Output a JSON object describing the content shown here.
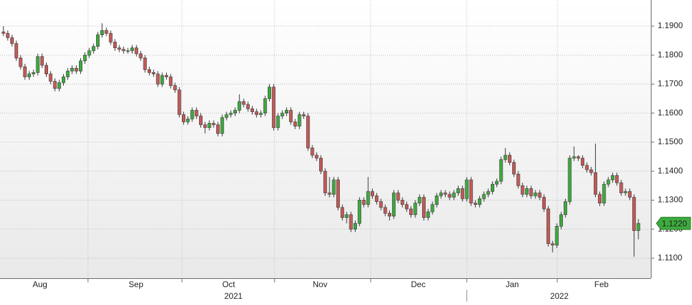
{
  "chart_data": {
    "type": "candlestick",
    "up_color": "#3daa3d",
    "down_color": "#c45a57",
    "outline_color": "#333333",
    "grid": true,
    "axis_side": "right",
    "xlim": [
      -0.8,
      150.9
    ],
    "ylim": [
      1.1031,
      1.199
    ],
    "yticks": [
      {
        "value": 1.11,
        "label": "1.1100"
      },
      {
        "value": 1.12,
        "label": "1.1200"
      },
      {
        "value": 1.13,
        "label": "1.1300"
      },
      {
        "value": 1.14,
        "label": "1.1400"
      },
      {
        "value": 1.15,
        "label": "1.1500"
      },
      {
        "value": 1.16,
        "label": "1.1600"
      },
      {
        "value": 1.17,
        "label": "1.1700"
      },
      {
        "value": 1.18,
        "label": "1.1800"
      },
      {
        "value": 1.19,
        "label": "1.1900"
      }
    ],
    "xticks": [
      {
        "value": 8.5,
        "label": "Aug"
      },
      {
        "value": 30.9,
        "label": "Sep"
      },
      {
        "value": 52.5,
        "label": "Oct"
      },
      {
        "value": 73.8,
        "label": "Nov"
      },
      {
        "value": 96.7,
        "label": "Dec"
      },
      {
        "value": 118.6,
        "label": "Jan"
      },
      {
        "value": 139.4,
        "label": "Feb"
      }
    ],
    "xgrid": [
      19.7,
      41.6,
      63.2,
      85.6,
      108.0,
      129.1
    ],
    "years": [
      {
        "value": 53.6,
        "label": "2021"
      },
      {
        "value": 129.6,
        "label": "2022"
      }
    ],
    "year_divider": 108.0,
    "last_price": {
      "value": 1.122,
      "label": "1.1220",
      "color": "#3daa3d"
    },
    "open": [
      1.188,
      1.1875,
      1.186,
      1.184,
      1.179,
      1.176,
      1.1725,
      1.1735,
      1.174,
      1.1795,
      1.1765,
      1.1735,
      1.171,
      1.1685,
      1.1705,
      1.1725,
      1.1745,
      1.1755,
      1.1745,
      1.178,
      1.18,
      1.1815,
      1.183,
      1.187,
      1.1885,
      1.1875,
      1.1845,
      1.1825,
      1.182,
      1.1815,
      1.1815,
      1.1825,
      1.1805,
      1.179,
      1.175,
      1.174,
      1.1735,
      1.17,
      1.173,
      1.1725,
      1.1695,
      1.168,
      1.1595,
      1.157,
      1.158,
      1.161,
      1.159,
      1.156,
      1.155,
      1.1565,
      1.156,
      1.153,
      1.1585,
      1.1595,
      1.16,
      1.161,
      1.164,
      1.163,
      1.1615,
      1.1605,
      1.1595,
      1.16,
      1.165,
      1.169,
      1.155,
      1.159,
      1.16,
      1.161,
      1.157,
      1.1555,
      1.1595,
      1.159,
      1.148,
      1.1455,
      1.1445,
      1.14,
      1.1325,
      1.132,
      1.137,
      1.1275,
      1.124,
      1.125,
      1.12,
      1.122,
      1.13,
      1.1285,
      1.133,
      1.1315,
      1.1295,
      1.1275,
      1.1255,
      1.1245,
      1.1325,
      1.13,
      1.1285,
      1.127,
      1.125,
      1.129,
      1.131,
      1.124,
      1.126,
      1.1285,
      1.1315,
      1.1325,
      1.132,
      1.131,
      1.1325,
      1.134,
      1.1305,
      1.137,
      1.129,
      1.1285,
      1.1305,
      1.132,
      1.133,
      1.1355,
      1.1365,
      1.144,
      1.1455,
      1.143,
      1.139,
      1.135,
      1.132,
      1.134,
      1.1315,
      1.1325,
      1.131,
      1.127,
      1.115,
      1.1145,
      1.121,
      1.125,
      1.1295,
      1.1445,
      1.145,
      1.1445,
      1.142,
      1.1405,
      1.1395,
      1.132,
      1.129,
      1.1355,
      1.137,
      1.1385,
      1.136,
      1.1325,
      1.133,
      1.131,
      1.1195
    ],
    "high": [
      1.19,
      1.1885,
      1.187,
      1.185,
      1.18,
      1.177,
      1.1745,
      1.175,
      1.1805,
      1.1805,
      1.1775,
      1.1745,
      1.172,
      1.1715,
      1.1735,
      1.1755,
      1.1765,
      1.1765,
      1.179,
      1.181,
      1.1825,
      1.184,
      1.188,
      1.191,
      1.1895,
      1.1885,
      1.1855,
      1.1835,
      1.183,
      1.1825,
      1.1835,
      1.1835,
      1.1815,
      1.18,
      1.176,
      1.175,
      1.1745,
      1.174,
      1.174,
      1.1735,
      1.1705,
      1.169,
      1.1605,
      1.159,
      1.162,
      1.162,
      1.16,
      1.157,
      1.1575,
      1.1575,
      1.157,
      1.1595,
      1.1605,
      1.161,
      1.162,
      1.1665,
      1.165,
      1.164,
      1.1625,
      1.1615,
      1.161,
      1.166,
      1.17,
      1.17,
      1.16,
      1.161,
      1.162,
      1.162,
      1.158,
      1.1605,
      1.1605,
      1.16,
      1.149,
      1.1465,
      1.1455,
      1.141,
      1.138,
      1.138,
      1.138,
      1.1285,
      1.126,
      1.126,
      1.123,
      1.131,
      1.131,
      1.138,
      1.134,
      1.1325,
      1.1305,
      1.1285,
      1.1265,
      1.1335,
      1.1335,
      1.131,
      1.1295,
      1.128,
      1.13,
      1.132,
      1.132,
      1.127,
      1.1295,
      1.1325,
      1.1335,
      1.1335,
      1.133,
      1.1335,
      1.135,
      1.135,
      1.138,
      1.138,
      1.13,
      1.1315,
      1.133,
      1.134,
      1.1365,
      1.1375,
      1.145,
      1.148,
      1.1465,
      1.144,
      1.14,
      1.136,
      1.135,
      1.135,
      1.1335,
      1.1335,
      1.132,
      1.128,
      1.116,
      1.122,
      1.126,
      1.1305,
      1.1455,
      1.1485,
      1.1455,
      1.1455,
      1.143,
      1.1415,
      1.1495,
      1.133,
      1.1365,
      1.138,
      1.1395,
      1.1395,
      1.137,
      1.134,
      1.134,
      1.132,
      1.1235
    ],
    "low": [
      1.1865,
      1.185,
      1.183,
      1.178,
      1.175,
      1.1715,
      1.1715,
      1.1725,
      1.173,
      1.1755,
      1.1725,
      1.17,
      1.1675,
      1.1675,
      1.1695,
      1.1715,
      1.1735,
      1.1735,
      1.1735,
      1.177,
      1.179,
      1.1805,
      1.182,
      1.186,
      1.1865,
      1.1835,
      1.1815,
      1.181,
      1.1805,
      1.1805,
      1.1805,
      1.1795,
      1.178,
      1.174,
      1.173,
      1.1725,
      1.169,
      1.169,
      1.1715,
      1.1685,
      1.167,
      1.1585,
      1.156,
      1.156,
      1.157,
      1.158,
      1.155,
      1.153,
      1.154,
      1.155,
      1.152,
      1.152,
      1.1575,
      1.1585,
      1.159,
      1.16,
      1.162,
      1.1605,
      1.1595,
      1.1585,
      1.1585,
      1.159,
      1.164,
      1.154,
      1.154,
      1.158,
      1.159,
      1.156,
      1.1545,
      1.1545,
      1.158,
      1.147,
      1.1445,
      1.1435,
      1.139,
      1.1315,
      1.131,
      1.131,
      1.1265,
      1.123,
      1.122,
      1.119,
      1.119,
      1.121,
      1.1275,
      1.1275,
      1.1305,
      1.1285,
      1.1265,
      1.1245,
      1.123,
      1.1235,
      1.129,
      1.1275,
      1.126,
      1.124,
      1.124,
      1.128,
      1.123,
      1.123,
      1.125,
      1.1275,
      1.1305,
      1.131,
      1.13,
      1.13,
      1.1315,
      1.1295,
      1.1295,
      1.128,
      1.1275,
      1.1275,
      1.1295,
      1.131,
      1.132,
      1.1345,
      1.1355,
      1.143,
      1.142,
      1.138,
      1.134,
      1.131,
      1.131,
      1.1305,
      1.1305,
      1.13,
      1.126,
      1.114,
      1.112,
      1.1135,
      1.12,
      1.124,
      1.1285,
      1.1435,
      1.1435,
      1.141,
      1.1395,
      1.1385,
      1.131,
      1.128,
      1.128,
      1.1345,
      1.136,
      1.135,
      1.1315,
      1.1315,
      1.13,
      1.1105,
      1.1165
    ],
    "close": [
      1.1875,
      1.186,
      1.184,
      1.179,
      1.176,
      1.1725,
      1.1735,
      1.174,
      1.1795,
      1.1765,
      1.1735,
      1.171,
      1.1685,
      1.1705,
      1.1725,
      1.1745,
      1.1755,
      1.1745,
      1.178,
      1.18,
      1.1815,
      1.183,
      1.187,
      1.1885,
      1.1875,
      1.1845,
      1.1825,
      1.182,
      1.1815,
      1.1815,
      1.1825,
      1.1805,
      1.179,
      1.175,
      1.174,
      1.1735,
      1.17,
      1.173,
      1.1725,
      1.1695,
      1.168,
      1.1595,
      1.157,
      1.158,
      1.161,
      1.159,
      1.156,
      1.155,
      1.1565,
      1.156,
      1.153,
      1.1585,
      1.1595,
      1.16,
      1.161,
      1.164,
      1.163,
      1.1615,
      1.1605,
      1.1595,
      1.16,
      1.165,
      1.169,
      1.155,
      1.159,
      1.16,
      1.161,
      1.157,
      1.1555,
      1.1595,
      1.159,
      1.148,
      1.1455,
      1.1445,
      1.14,
      1.1325,
      1.132,
      1.137,
      1.1275,
      1.124,
      1.125,
      1.12,
      1.122,
      1.13,
      1.1285,
      1.133,
      1.1315,
      1.1295,
      1.1275,
      1.1255,
      1.1245,
      1.1325,
      1.13,
      1.1285,
      1.127,
      1.125,
      1.129,
      1.131,
      1.124,
      1.126,
      1.1285,
      1.1315,
      1.1325,
      1.132,
      1.131,
      1.1325,
      1.134,
      1.1305,
      1.137,
      1.129,
      1.1285,
      1.1305,
      1.132,
      1.133,
      1.1355,
      1.1365,
      1.144,
      1.1455,
      1.143,
      1.139,
      1.135,
      1.132,
      1.134,
      1.1315,
      1.1325,
      1.131,
      1.127,
      1.115,
      1.1145,
      1.121,
      1.125,
      1.1295,
      1.1445,
      1.145,
      1.1445,
      1.142,
      1.1405,
      1.1395,
      1.132,
      1.129,
      1.1355,
      1.137,
      1.1385,
      1.136,
      1.1325,
      1.133,
      1.131,
      1.1195,
      1.122
    ]
  }
}
